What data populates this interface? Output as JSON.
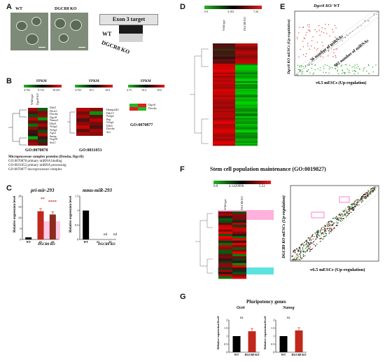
{
  "panels": {
    "A": "A",
    "B": "B",
    "C": "C",
    "D": "D",
    "E": "E",
    "F": "F",
    "G": "G"
  },
  "panelA": {
    "wt": "WT",
    "ko": "DGCR8 KO",
    "exon_title": "Exon 3 target",
    "lane_wt": "WT",
    "lane_ko": "DGCR8 KO"
  },
  "panelB": {
    "fpkm": "FPKM",
    "h1": {
      "scale": [
        "4.763",
        "9.725",
        "18.451"
      ],
      "cols": [
        "Wild type",
        "Dgcr8 KO"
      ],
      "go": "GO:0070878",
      "genes": [
        "Ddx5",
        "Dicer1",
        "Drosha",
        "Dgcr8",
        "Nanos3",
        "Dhx9",
        "Ncbp2",
        "Ncbp1",
        "Ago2",
        "Snrnp",
        "Nop58",
        "Srsf1"
      ]
    },
    "h2": {
      "scale": [
        "4.763",
        "10.5",
        "18.6"
      ],
      "go": "GO:0031053",
      "genes": [
        "Hnrnpa2b1",
        "Ddx17",
        "Ncbp2",
        "Pnp",
        "Ncbp1",
        "Ddx5",
        "Drosha",
        "Srrt"
      ]
    },
    "h3": {
      "scale": [
        "4.75",
        "10.4",
        "18.6"
      ],
      "go": "GO:0070877",
      "genes": [
        "Dgcr8",
        "Drosha"
      ]
    },
    "note_title": "Microprocessor complex proteins (Drosha, Dgcr8):",
    "notes": [
      "GO:0070878 primary miRNA binding",
      "GO:0031053 primary miRNA processing",
      "GO:0070877 microprocessor complex"
    ]
  },
  "panelC": {
    "chart1_title": "pri-mir-293",
    "chart2_title": "mmu-miR-293",
    "ylabel": "Relative expression level",
    "group_label": "DGCR8 KO",
    "star1": "**",
    "star2": "****",
    "nd": "nd"
  },
  "chart_data": [
    {
      "type": "bar",
      "title": "pri-mir-293",
      "categories": [
        "WT",
        "#1",
        "#2"
      ],
      "values": [
        1,
        13,
        11.5
      ],
      "ylabel": "Relative expression level",
      "ylim": [
        0,
        20
      ],
      "yticks": [
        0,
        5,
        10,
        15,
        20
      ],
      "colors": [
        "#000000",
        "#c0281c",
        "#8b2a1e"
      ]
    },
    {
      "type": "bar",
      "title": "mmu-miR-293",
      "categories": [
        "WT",
        "#1",
        "#2"
      ],
      "values": [
        1,
        0,
        0
      ],
      "ylabel": "Relative expression level",
      "ylim": [
        0,
        1.5
      ],
      "yticks": [
        0,
        0.5,
        1.0,
        1.5
      ],
      "colors": [
        "#000000",
        "#c0281c",
        "#8b2a1e"
      ]
    },
    {
      "type": "bar",
      "title": "Oct4",
      "categories": [
        "WT",
        "DGCR8 KO"
      ],
      "values": [
        1,
        1.3
      ],
      "ylabel": "Relative expression level",
      "ylim": [
        0,
        2
      ],
      "yticks": [
        0,
        0.5,
        1.0,
        1.5,
        2.0
      ],
      "colors": [
        "#000000",
        "#c0281c"
      ]
    },
    {
      "type": "bar",
      "title": "Nanog",
      "categories": [
        "WT",
        "DGCR8 KO"
      ],
      "values": [
        1,
        1.35
      ],
      "ylabel": "Relative expression level",
      "ylim": [
        0,
        2
      ],
      "yticks": [
        0,
        0.5,
        1.0,
        1.5,
        2.0
      ],
      "colors": [
        "#000000",
        "#c0281c"
      ]
    }
  ],
  "panelD": {
    "scale": [
      "0.0",
      "4.183",
      "7.26"
    ],
    "cols": [
      "Wild type",
      "DGCR8 KO"
    ]
  },
  "panelE": {
    "title": "Dgcr8 KO/ WT",
    "ylabel": "Dgcr8 KO mESCs (Up-regulation)",
    "xlabel": "v6.5 mESCs (Up-regulation)",
    "ann1": "36 number of miRNAs",
    "ann2": "902 number of miRNAs"
  },
  "panelF": {
    "title": "Stem cell population maintenance (GO:0019827)",
    "scale": [
      "0.0",
      "4.1429996",
      "5.51"
    ],
    "cols": [
      "Wild type",
      "DGCR8 KO"
    ],
    "ylabel": "DGCR8 KO mESCs (Up-regulation)",
    "xlabel": "v6.5 mESCs (Up-regulation)"
  },
  "panelG": {
    "title": "Pluripotency genes",
    "c1": "Oct4",
    "c2": "Nanog",
    "ns": "ns",
    "ylabel": "Relative expression level",
    "wt": "WT",
    "ko": "DGCR8 KO"
  },
  "colors": {
    "red": "#e01f1f",
    "green": "#22b822",
    "bar_ko": "#c0281c",
    "pink": "#ffb0dc",
    "cyan": "#5be3e0"
  }
}
